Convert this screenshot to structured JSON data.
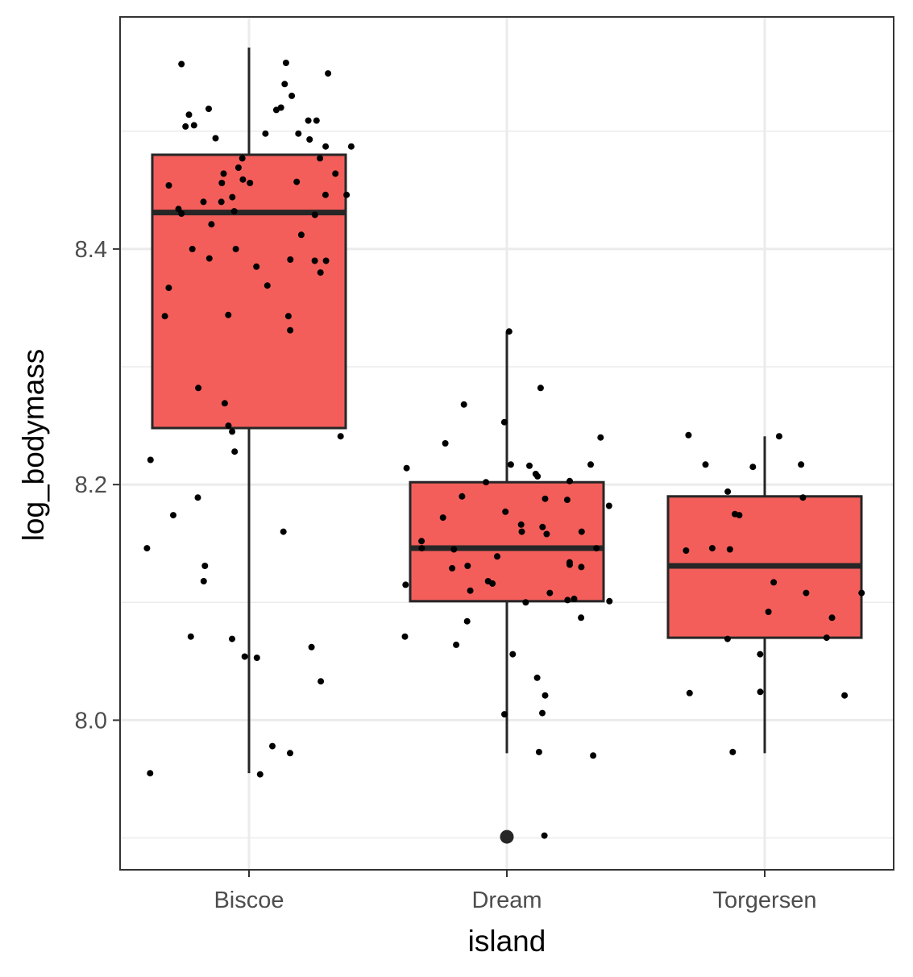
{
  "chart_data": {
    "type": "boxplot",
    "title": "",
    "xlabel": "island",
    "ylabel": "log_bodymass",
    "categories": [
      "Biscoe",
      "Dream",
      "Torgersen"
    ],
    "ylim": [
      7.873,
      8.597
    ],
    "y_ticks": [
      8.0,
      8.2,
      8.4
    ],
    "y_tick_labels": [
      "8.0",
      "8.2",
      "8.4"
    ],
    "y_minor_gridlines": [
      7.9,
      8.1,
      8.3,
      8.5
    ],
    "grid": true,
    "legend": "none",
    "colors": {
      "box_fill": "#F35E5A",
      "box_stroke": "#262626",
      "point": "#000000",
      "grid": "#EBEBEB",
      "panel_border": "#333333"
    },
    "boxes": [
      {
        "category": "Biscoe",
        "whisker_low": 7.955,
        "q1": 8.248,
        "median": 8.431,
        "q3": 8.48,
        "whisker_high": 8.571,
        "outliers": []
      },
      {
        "category": "Dream",
        "whisker_low": 7.972,
        "q1": 8.101,
        "median": 8.146,
        "q3": 8.202,
        "whisker_high": 8.33,
        "outliers": [
          7.901
        ]
      },
      {
        "category": "Torgersen",
        "whisker_low": 7.972,
        "q1": 8.07,
        "median": 8.131,
        "q3": 8.19,
        "whisker_high": 8.241,
        "outliers": []
      }
    ],
    "points": [
      {
        "category": "Biscoe",
        "y": [
          8.52,
          8.519,
          8.518,
          8.487,
          8.558,
          8.54,
          8.557,
          8.549,
          8.53,
          8.509,
          8.498,
          8.494,
          8.493,
          8.504,
          8.498,
          8.505,
          8.514,
          8.509,
          8.487,
          8.477,
          8.454,
          8.459,
          8.457,
          8.44,
          8.44,
          8.456,
          8.464,
          8.446,
          8.444,
          8.432,
          8.429,
          8.43,
          8.434,
          8.421,
          8.464,
          8.456,
          8.446,
          8.477,
          8.412,
          8.4,
          8.4,
          8.39,
          8.39,
          8.392,
          8.385,
          8.38,
          8.391,
          8.367,
          8.369,
          8.343,
          8.343,
          8.344,
          8.331,
          8.282,
          8.269,
          8.25,
          8.245,
          8.241,
          8.228,
          8.221,
          8.189,
          8.174,
          8.16,
          8.146,
          8.131,
          8.118,
          8.069,
          8.071,
          8.062,
          8.054,
          8.053,
          8.033,
          7.978,
          7.972,
          7.955,
          7.954,
          8.469
        ]
      },
      {
        "category": "Dream",
        "y": [
          8.33,
          8.282,
          8.268,
          8.253,
          8.24,
          8.235,
          8.217,
          8.217,
          8.216,
          8.214,
          8.209,
          8.207,
          8.202,
          8.203,
          8.188,
          8.19,
          8.187,
          8.182,
          8.177,
          8.172,
          8.166,
          8.164,
          8.16,
          8.16,
          8.158,
          8.152,
          8.146,
          8.146,
          8.145,
          8.139,
          8.134,
          8.131,
          8.13,
          8.129,
          8.132,
          8.118,
          8.116,
          8.115,
          8.11,
          8.108,
          8.103,
          8.102,
          8.101,
          8.1,
          8.087,
          8.084,
          8.071,
          8.064,
          8.056,
          8.036,
          8.021,
          8.006,
          8.005,
          7.973,
          7.97,
          7.902
        ]
      },
      {
        "category": "Torgersen",
        "y": [
          8.242,
          8.241,
          8.217,
          8.217,
          8.215,
          8.194,
          8.189,
          8.175,
          8.174,
          8.146,
          8.145,
          8.144,
          8.117,
          8.108,
          8.108,
          8.092,
          8.087,
          8.07,
          8.069,
          8.056,
          8.024,
          8.023,
          8.021,
          7.973
        ]
      }
    ]
  }
}
